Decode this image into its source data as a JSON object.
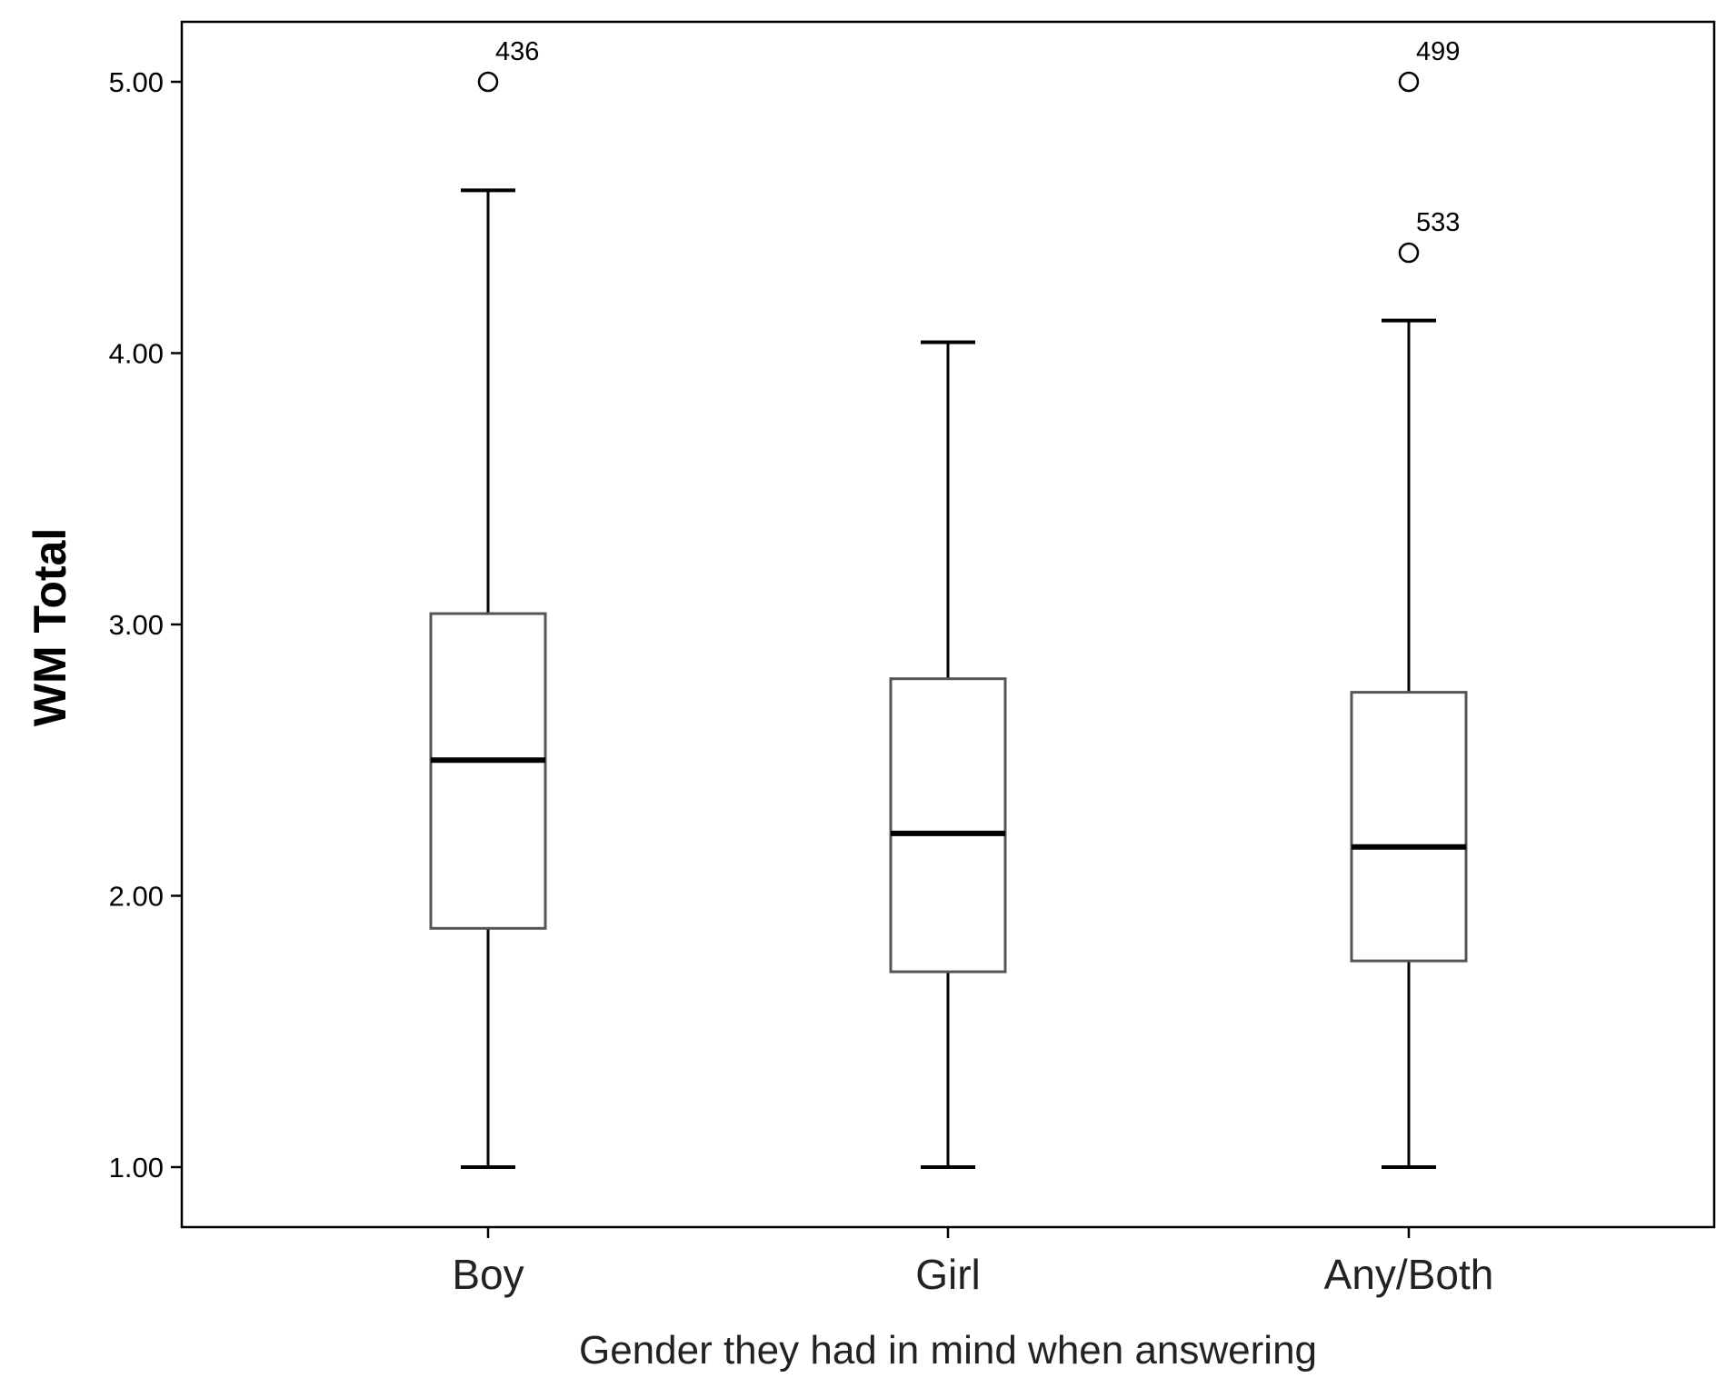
{
  "chart_data": {
    "type": "boxplot",
    "title": "",
    "xlabel": "Gender they had in mind when answering",
    "ylabel": "WM Total",
    "ylim": [
      0.78,
      5.22
    ],
    "yticks": [
      1.0,
      2.0,
      3.0,
      4.0,
      5.0
    ],
    "ytick_labels": [
      "1.00",
      "2.00",
      "3.00",
      "4.00",
      "5.00"
    ],
    "grid": false,
    "legend": "none",
    "categories": [
      "Boy",
      "Girl",
      "Any/Both"
    ],
    "boxes": [
      {
        "category": "Boy",
        "whisker_low": 1.0,
        "q1": 1.88,
        "median": 2.5,
        "q3": 3.04,
        "whisker_high": 4.6,
        "outliers": [
          {
            "value": 5.0,
            "label": "436"
          }
        ]
      },
      {
        "category": "Girl",
        "whisker_low": 1.0,
        "q1": 1.72,
        "median": 2.23,
        "q3": 2.8,
        "whisker_high": 4.04,
        "outliers": []
      },
      {
        "category": "Any/Both",
        "whisker_low": 1.0,
        "q1": 1.76,
        "median": 2.18,
        "q3": 2.75,
        "whisker_high": 4.12,
        "outliers": [
          {
            "value": 5.0,
            "label": "499"
          },
          {
            "value": 4.37,
            "label": "533"
          }
        ]
      }
    ],
    "colors": {
      "box_fill": "#ffffff",
      "box_stroke": "#555555",
      "whisker": "#000000",
      "median": "#000000",
      "frame": "#000000",
      "text": "#000000"
    }
  }
}
